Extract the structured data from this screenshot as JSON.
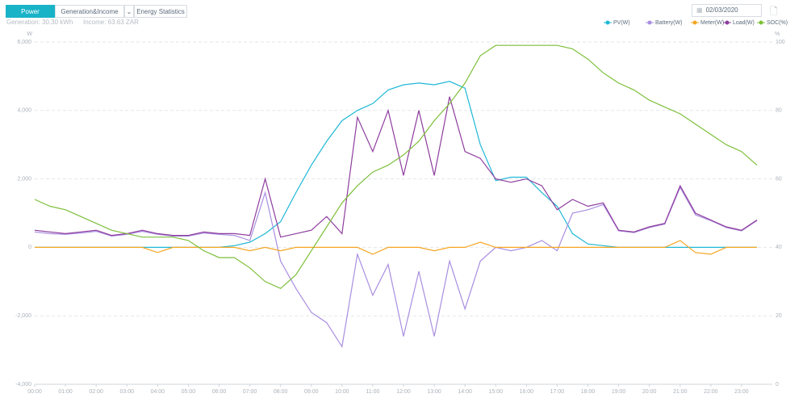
{
  "header": {
    "tabs": [
      "Power",
      "Generation&Income",
      "Energy Statistics"
    ],
    "summary": [
      "Generation:  30.30 kWh",
      "Income:  63.63 ZAR"
    ],
    "date": "02/03/2020"
  },
  "chart_data": {
    "type": "line",
    "ylabel": "W",
    "y2label": "%",
    "x": [
      0,
      30,
      60,
      90,
      120,
      150,
      180,
      210,
      240,
      270,
      300,
      330,
      360,
      390,
      420,
      450,
      480,
      510,
      540,
      570,
      600,
      630,
      660,
      690,
      720,
      750,
      780,
      810,
      840,
      870,
      900,
      930,
      960,
      990,
      1020,
      1050,
      1080,
      1110,
      1140,
      1170,
      1200,
      1230,
      1260,
      1290,
      1320,
      1350,
      1380,
      1410
    ],
    "xlim": [
      0,
      1440
    ],
    "xticks": [
      {
        "value": 0,
        "label": "00:00"
      },
      {
        "value": 60,
        "label": "01:00"
      },
      {
        "value": 120,
        "label": "02:00"
      },
      {
        "value": 180,
        "label": "03:00"
      },
      {
        "value": 240,
        "label": "04:00"
      },
      {
        "value": 300,
        "label": "05:00"
      },
      {
        "value": 360,
        "label": "06:00"
      },
      {
        "value": 420,
        "label": "07:00"
      },
      {
        "value": 480,
        "label": "08:00"
      },
      {
        "value": 540,
        "label": "09:00"
      },
      {
        "value": 600,
        "label": "10:00"
      },
      {
        "value": 660,
        "label": "11:00"
      },
      {
        "value": 720,
        "label": "12:00"
      },
      {
        "value": 780,
        "label": "13:00"
      },
      {
        "value": 840,
        "label": "14:00"
      },
      {
        "value": 900,
        "label": "15:00"
      },
      {
        "value": 960,
        "label": "16:00"
      },
      {
        "value": 1020,
        "label": "17:00"
      },
      {
        "value": 1080,
        "label": "18:00"
      },
      {
        "value": 1140,
        "label": "19:00"
      },
      {
        "value": 1200,
        "label": "20:00"
      },
      {
        "value": 1260,
        "label": "21:00"
      },
      {
        "value": 1320,
        "label": "22:00"
      },
      {
        "value": 1380,
        "label": "23:00"
      }
    ],
    "ylim": [
      -4000,
      6000
    ],
    "yticks": [
      {
        "value": -4000,
        "label": "-4,000"
      },
      {
        "value": -2000,
        "label": "-2,000"
      },
      0,
      {
        "value": 2000,
        "label": "2,000"
      },
      {
        "value": 4000,
        "label": "4,000"
      },
      {
        "value": 6000,
        "label": "6,000"
      }
    ],
    "y2lim": [
      0,
      100
    ],
    "y2ticks": [
      0,
      20,
      40,
      60,
      80,
      100
    ],
    "grid": true,
    "series": [
      {
        "name": "PV(W)",
        "color": "#1fb8d6",
        "values": [
          0,
          0,
          0,
          0,
          0,
          0,
          0,
          0,
          0,
          0,
          0,
          0,
          0,
          50,
          150,
          400,
          750,
          1600,
          2400,
          3100,
          3700,
          4000,
          4200,
          4600,
          4750,
          4800,
          4750,
          4850,
          4650,
          3000,
          1950,
          2050,
          2050,
          1600,
          1200,
          400,
          100,
          50,
          0,
          0,
          0,
          0,
          0,
          0,
          0,
          0,
          0,
          0
        ]
      },
      {
        "name": "Battery(W)",
        "color": "#a98ee0",
        "values": [
          450,
          400,
          380,
          420,
          470,
          330,
          380,
          470,
          380,
          330,
          330,
          420,
          380,
          350,
          200,
          1600,
          -400,
          -1200,
          -1900,
          -2200,
          -2900,
          -200,
          -1400,
          -500,
          -2600,
          -700,
          -2600,
          -400,
          -1800,
          -400,
          0,
          -100,
          0,
          200,
          -100,
          1000,
          1100,
          1250,
          480,
          430,
          580,
          680,
          1750,
          950,
          780,
          580,
          480,
          780
        ]
      },
      {
        "name": "Meter(W)",
        "color": "#f5a623",
        "values": [
          0,
          0,
          0,
          0,
          0,
          0,
          0,
          0,
          -150,
          0,
          0,
          0,
          0,
          0,
          -100,
          0,
          -100,
          0,
          0,
          0,
          0,
          0,
          -200,
          0,
          0,
          0,
          -100,
          0,
          0,
          150,
          0,
          0,
          0,
          0,
          0,
          0,
          0,
          0,
          0,
          0,
          0,
          0,
          200,
          -150,
          -200,
          0,
          0,
          0
        ]
      },
      {
        "name": "Load(W)",
        "color": "#8e3d9e",
        "values": [
          500,
          450,
          400,
          450,
          500,
          350,
          400,
          500,
          400,
          350,
          350,
          450,
          400,
          400,
          350,
          2000,
          300,
          400,
          500,
          900,
          400,
          3800,
          2800,
          4000,
          2100,
          4000,
          2100,
          4400,
          2800,
          2600,
          2000,
          1900,
          2000,
          1800,
          1100,
          1400,
          1200,
          1300,
          500,
          450,
          600,
          700,
          1800,
          1000,
          800,
          600,
          500,
          800
        ]
      },
      {
        "name": "SOC(%)",
        "color": "#7dbf3a",
        "axis": "y2",
        "values": [
          54,
          52,
          51,
          49,
          47,
          45,
          44,
          43,
          43,
          43,
          42,
          39,
          37,
          37,
          34,
          30,
          28,
          32,
          39,
          46,
          53,
          58,
          62,
          64,
          67,
          71,
          77,
          82,
          88,
          96,
          99,
          99,
          99,
          99,
          99,
          98,
          95,
          91,
          88,
          86,
          83,
          81,
          79,
          76,
          73,
          70,
          68,
          64
        ]
      }
    ]
  }
}
